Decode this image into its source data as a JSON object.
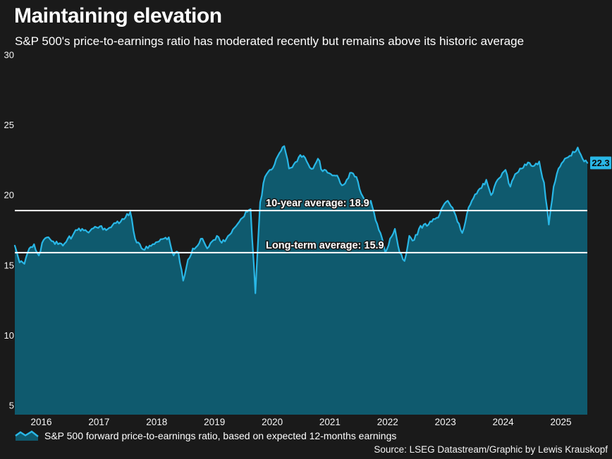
{
  "header": {
    "title": "Maintaining elevation",
    "subtitle": "S&P 500's price-to-earnings ratio has moderated recently but remains above its historic average"
  },
  "legend": {
    "series_label": "S&P 500 forward price-to-earnings ratio, based on expected 12-months earnings",
    "icon": "area-series-icon"
  },
  "source": "Source: LSEG Datastream/Graphic by Lewis Krauskopf",
  "chart_data": {
    "type": "area",
    "title": "Maintaining elevation",
    "xlabel": "",
    "ylabel": "",
    "grid": false,
    "legend_position": "bottom",
    "y_axis": {
      "min": 5,
      "max": 30,
      "ticks": [
        5,
        10,
        15,
        20,
        25,
        30
      ]
    },
    "x_axis": {
      "years": [
        2016,
        2017,
        2018,
        2019,
        2020,
        2021,
        2022,
        2023,
        2024,
        2025
      ],
      "label_anchor": "mid-year"
    },
    "series": [
      {
        "name": "S&P 500 forward price-to-earnings ratio",
        "values_by_year": {
          "2016": [
            16.4,
            15.2,
            15.1,
            16.2,
            16.5,
            15.7,
            16.8,
            17.0,
            16.7,
            16.5,
            16.4,
            16.9
          ],
          "2017": [
            17.1,
            17.5,
            17.6,
            17.4,
            17.6,
            17.7,
            17.8,
            17.5,
            17.7,
            18.0,
            18.1,
            18.4
          ],
          "2018": [
            18.8,
            16.9,
            16.5,
            16.1,
            16.4,
            16.5,
            16.7,
            16.9,
            17.0,
            15.7,
            15.9,
            13.9
          ],
          "2019": [
            15.4,
            16.2,
            16.4,
            16.9,
            16.2,
            16.7,
            17.1,
            16.6,
            16.9,
            17.3,
            17.8,
            18.3
          ],
          "2020": [
            18.8,
            19.0,
            13.0,
            19.5,
            21.3,
            21.8,
            22.2,
            23.0,
            23.5,
            21.9,
            22.2,
            22.7
          ],
          "2021": [
            22.8,
            22.2,
            21.9,
            22.6,
            21.7,
            21.6,
            21.4,
            21.4,
            20.7,
            21.1,
            21.6,
            21.3
          ],
          "2022": [
            20.1,
            19.3,
            19.6,
            18.2,
            17.3,
            15.9,
            16.9,
            17.6,
            15.9,
            15.3,
            17.1,
            16.8
          ],
          "2023": [
            17.6,
            17.9,
            17.9,
            18.3,
            18.4,
            19.2,
            19.6,
            19.1,
            18.1,
            17.3,
            18.7,
            19.6
          ],
          "2024": [
            20.1,
            20.5,
            21.1,
            20.0,
            20.9,
            21.3,
            21.8,
            20.6,
            21.5,
            21.9,
            22.2,
            22.3
          ],
          "2025": [
            22.1,
            22.4,
            20.9,
            17.9,
            20.6,
            21.9,
            22.4,
            22.7,
            23.1,
            23.4,
            22.6,
            22.3
          ]
        }
      }
    ],
    "reference_lines": [
      {
        "label": "10-year average: 18.9",
        "value": 18.9
      },
      {
        "label": "Long-term average: 15.9",
        "value": 15.9
      }
    ],
    "end_label": {
      "text": "22.3",
      "value": 22.3
    },
    "colors": {
      "background": "#1a1a1a",
      "line": "#29b7e6",
      "area_fill": "#0f5a6e",
      "reference_line": "#ffffff",
      "tick_text": "#f5f5f5",
      "annotation_text": "#ffffff",
      "label_box_bg": "#29b7e6",
      "label_box_text": "#0b0b0b"
    },
    "texture": {
      "steps_per_segment": 3,
      "jitter": 0.16,
      "seed": 42
    }
  }
}
